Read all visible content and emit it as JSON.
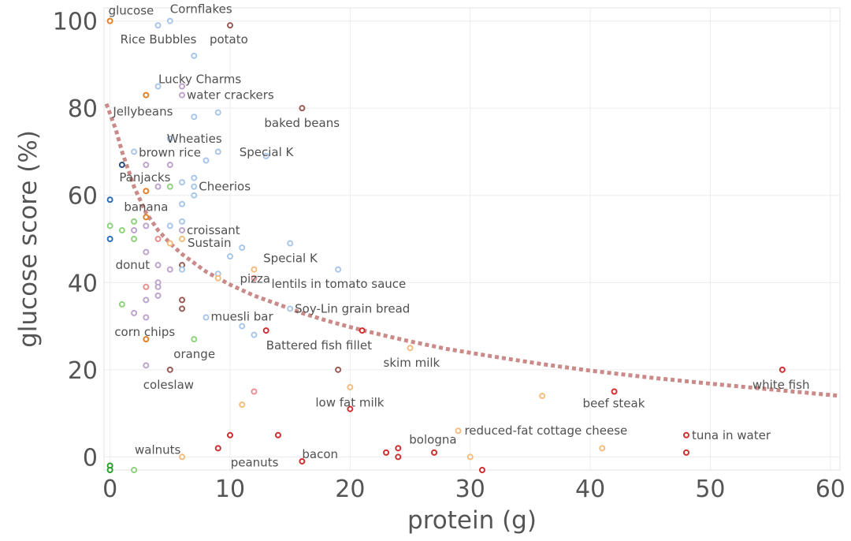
{
  "chart_data": {
    "type": "scatter",
    "xlabel": "protein (g)",
    "ylabel": "glucose score (%)",
    "xlim": [
      -0.5,
      60.8
    ],
    "ylim": [
      -3,
      103
    ],
    "x_ticks": [
      0,
      10,
      20,
      30,
      40,
      50,
      60
    ],
    "y_ticks": [
      0,
      20,
      40,
      60,
      80,
      100
    ],
    "grid": true,
    "colors": {
      "light_blue": "#a9c6e8",
      "purple": "#bfa3cf",
      "orange": "#e67e22",
      "light_orange": "#f5bc7d",
      "salmon": "#ea8f8f",
      "red": "#d02f2f",
      "brown": "#9a5a54",
      "green": "#8fd27e",
      "blue": "#2e6fb7",
      "dark_green": "#2ca02c",
      "navy": "#2b4c7e",
      "trend": "#c98a88"
    },
    "points": [
      {
        "x": 0,
        "y": 100,
        "color": "orange",
        "label": "glucose"
      },
      {
        "x": 5,
        "y": 100,
        "color": "light_blue",
        "label": "Cornflakes"
      },
      {
        "x": 4,
        "y": 99,
        "color": "light_blue",
        "label": "Rice Bubbles"
      },
      {
        "x": 10,
        "y": 99,
        "color": "brown",
        "label": "potato"
      },
      {
        "x": 7,
        "y": 92,
        "color": "light_blue",
        "label": ""
      },
      {
        "x": 4,
        "y": 85,
        "color": "light_blue",
        "label": ""
      },
      {
        "x": 6,
        "y": 85,
        "color": "purple",
        "label": "Lucky Charms"
      },
      {
        "x": 3,
        "y": 83,
        "color": "orange",
        "label": "Jellybeans"
      },
      {
        "x": 6,
        "y": 83,
        "color": "purple",
        "label": "water crackers"
      },
      {
        "x": 16,
        "y": 80,
        "color": "brown",
        "label": "baked beans"
      },
      {
        "x": 7,
        "y": 78,
        "color": "light_blue",
        "label": ""
      },
      {
        "x": 9,
        "y": 79,
        "color": "light_blue",
        "label": ""
      },
      {
        "x": 5,
        "y": 73,
        "color": "light_blue",
        "label": "Wheaties"
      },
      {
        "x": 2,
        "y": 70,
        "color": "light_blue",
        "label": "brown rice"
      },
      {
        "x": 9,
        "y": 70,
        "color": "light_blue",
        "label": ""
      },
      {
        "x": 8,
        "y": 68,
        "color": "light_blue",
        "label": ""
      },
      {
        "x": 13,
        "y": 69,
        "color": "light_blue",
        "label": "Special K"
      },
      {
        "x": 1,
        "y": 67,
        "color": "navy",
        "label": ""
      },
      {
        "x": 3,
        "y": 67,
        "color": "purple",
        "label": ""
      },
      {
        "x": 5,
        "y": 67,
        "color": "purple",
        "label": ""
      },
      {
        "x": 3,
        "y": 61,
        "color": "orange",
        "label": "Panjacks"
      },
      {
        "x": 4,
        "y": 62,
        "color": "purple",
        "label": ""
      },
      {
        "x": 5,
        "y": 62,
        "color": "green",
        "label": ""
      },
      {
        "x": 6,
        "y": 63,
        "color": "light_blue",
        "label": ""
      },
      {
        "x": 7,
        "y": 64,
        "color": "light_blue",
        "label": ""
      },
      {
        "x": 7,
        "y": 62,
        "color": "light_blue",
        "label": "Cheerios"
      },
      {
        "x": 7,
        "y": 60,
        "color": "light_blue",
        "label": ""
      },
      {
        "x": 6,
        "y": 58,
        "color": "light_blue",
        "label": ""
      },
      {
        "x": 0,
        "y": 59,
        "color": "blue",
        "label": ""
      },
      {
        "x": 3,
        "y": 55,
        "color": "orange",
        "label": "banana"
      },
      {
        "x": 2,
        "y": 54,
        "color": "green",
        "label": ""
      },
      {
        "x": 0,
        "y": 53,
        "color": "green",
        "label": ""
      },
      {
        "x": 1,
        "y": 52,
        "color": "green",
        "label": ""
      },
      {
        "x": 2,
        "y": 52,
        "color": "purple",
        "label": ""
      },
      {
        "x": 3,
        "y": 53,
        "color": "purple",
        "label": ""
      },
      {
        "x": 5,
        "y": 53,
        "color": "light_blue",
        "label": ""
      },
      {
        "x": 6,
        "y": 54,
        "color": "light_blue",
        "label": ""
      },
      {
        "x": 6,
        "y": 52,
        "color": "purple",
        "label": "croissant"
      },
      {
        "x": 0,
        "y": 50,
        "color": "blue",
        "label": ""
      },
      {
        "x": 2,
        "y": 50,
        "color": "green",
        "label": ""
      },
      {
        "x": 4,
        "y": 50,
        "color": "salmon",
        "label": ""
      },
      {
        "x": 5,
        "y": 49,
        "color": "light_orange",
        "label": ""
      },
      {
        "x": 6,
        "y": 50,
        "color": "light_orange",
        "label": ""
      },
      {
        "x": 10,
        "y": 46,
        "color": "light_blue",
        "label": "Sustain"
      },
      {
        "x": 11,
        "y": 48,
        "color": "light_blue",
        "label": ""
      },
      {
        "x": 15,
        "y": 49,
        "color": "light_blue",
        "label": "Special K"
      },
      {
        "x": 3,
        "y": 47,
        "color": "purple",
        "label": ""
      },
      {
        "x": 4,
        "y": 44,
        "color": "purple",
        "label": "donut"
      },
      {
        "x": 5,
        "y": 43,
        "color": "purple",
        "label": ""
      },
      {
        "x": 6,
        "y": 44,
        "color": "brown",
        "label": ""
      },
      {
        "x": 6,
        "y": 43,
        "color": "light_blue",
        "label": ""
      },
      {
        "x": 9,
        "y": 42,
        "color": "light_blue",
        "label": ""
      },
      {
        "x": 9,
        "y": 41,
        "color": "light_orange",
        "label": ""
      },
      {
        "x": 12,
        "y": 43,
        "color": "light_orange",
        "label": "pizza"
      },
      {
        "x": 12,
        "y": 41,
        "color": "salmon",
        "label": "lentils in tomato sauce"
      },
      {
        "x": 19,
        "y": 43,
        "color": "light_blue",
        "label": ""
      },
      {
        "x": 3,
        "y": 39,
        "color": "salmon",
        "label": ""
      },
      {
        "x": 4,
        "y": 40,
        "color": "purple",
        "label": ""
      },
      {
        "x": 4,
        "y": 39,
        "color": "purple",
        "label": ""
      },
      {
        "x": 4,
        "y": 37,
        "color": "purple",
        "label": ""
      },
      {
        "x": 3,
        "y": 36,
        "color": "purple",
        "label": ""
      },
      {
        "x": 6,
        "y": 36,
        "color": "brown",
        "label": ""
      },
      {
        "x": 6,
        "y": 34,
        "color": "brown",
        "label": ""
      },
      {
        "x": 1,
        "y": 35,
        "color": "green",
        "label": ""
      },
      {
        "x": 2,
        "y": 33,
        "color": "purple",
        "label": ""
      },
      {
        "x": 3,
        "y": 32,
        "color": "purple",
        "label": ""
      },
      {
        "x": 8,
        "y": 32,
        "color": "light_blue",
        "label": "muesli bar"
      },
      {
        "x": 11,
        "y": 30,
        "color": "light_blue",
        "label": ""
      },
      {
        "x": 12,
        "y": 28,
        "color": "light_blue",
        "label": ""
      },
      {
        "x": 15,
        "y": 34,
        "color": "light_blue",
        "label": "Soy-Lin grain bread"
      },
      {
        "x": 13,
        "y": 29,
        "color": "red",
        "label": "Battered fish fillet"
      },
      {
        "x": 21,
        "y": 29,
        "color": "red",
        "label": ""
      },
      {
        "x": 3,
        "y": 27,
        "color": "orange",
        "label": "corn chips"
      },
      {
        "x": 7,
        "y": 27,
        "color": "green",
        "label": "orange"
      },
      {
        "x": 25,
        "y": 25,
        "color": "light_orange",
        "label": "skim milk"
      },
      {
        "x": 3,
        "y": 21,
        "color": "purple",
        "label": ""
      },
      {
        "x": 5,
        "y": 20,
        "color": "brown",
        "label": "coleslaw"
      },
      {
        "x": 19,
        "y": 20,
        "color": "brown",
        "label": ""
      },
      {
        "x": 56,
        "y": 20,
        "color": "red",
        "label": "white fish"
      },
      {
        "x": 20,
        "y": 16,
        "color": "light_orange",
        "label": ""
      },
      {
        "x": 12,
        "y": 15,
        "color": "salmon",
        "label": ""
      },
      {
        "x": 11,
        "y": 12,
        "color": "light_orange",
        "label": ""
      },
      {
        "x": 20,
        "y": 11,
        "color": "red",
        "label": "low fat milk"
      },
      {
        "x": 36,
        "y": 14,
        "color": "light_orange",
        "label": ""
      },
      {
        "x": 42,
        "y": 15,
        "color": "red",
        "label": "beef steak"
      },
      {
        "x": 29,
        "y": 6,
        "color": "light_orange",
        "label": "reduced-fat cottage cheese"
      },
      {
        "x": 10,
        "y": 5,
        "color": "red",
        "label": ""
      },
      {
        "x": 14,
        "y": 5,
        "color": "red",
        "label": ""
      },
      {
        "x": 9,
        "y": 2,
        "color": "red",
        "label": "peanuts"
      },
      {
        "x": 6,
        "y": 0,
        "color": "light_orange",
        "label": "walnuts"
      },
      {
        "x": 16,
        "y": -1,
        "color": "red",
        "label": "bacon"
      },
      {
        "x": 23,
        "y": 1,
        "color": "red",
        "label": ""
      },
      {
        "x": 24,
        "y": 2,
        "color": "red",
        "label": "bologna"
      },
      {
        "x": 24,
        "y": 0,
        "color": "red",
        "label": ""
      },
      {
        "x": 27,
        "y": 1,
        "color": "red",
        "label": ""
      },
      {
        "x": 30,
        "y": 0,
        "color": "light_orange",
        "label": ""
      },
      {
        "x": 31,
        "y": -3,
        "color": "red",
        "label": ""
      },
      {
        "x": 41,
        "y": 2,
        "color": "light_orange",
        "label": ""
      },
      {
        "x": 48,
        "y": 5,
        "color": "red",
        "label": "tuna in water"
      },
      {
        "x": 48,
        "y": 1,
        "color": "red",
        "label": ""
      },
      {
        "x": 2,
        "y": -3,
        "color": "green",
        "label": ""
      },
      {
        "x": 0,
        "y": -2,
        "color": "dark_green",
        "label": ""
      },
      {
        "x": 0,
        "y": -3,
        "color": "dark_green",
        "label": ""
      }
    ],
    "trendline": {
      "style": "dotted",
      "color": "trend",
      "x": [
        -0.3,
        0.5,
        1,
        2,
        3,
        4,
        5,
        6,
        8,
        10,
        12,
        14,
        16,
        18,
        20,
        22,
        25,
        28,
        32,
        36,
        40,
        45,
        50,
        55,
        60.8
      ],
      "y": [
        81,
        75,
        70,
        62,
        56,
        52,
        49,
        46.5,
        42.5,
        39.5,
        37,
        35,
        33,
        31.3,
        29.8,
        28.4,
        26.5,
        24.8,
        23,
        21.3,
        19.8,
        18.2,
        16.8,
        15.5,
        14
      ]
    }
  }
}
